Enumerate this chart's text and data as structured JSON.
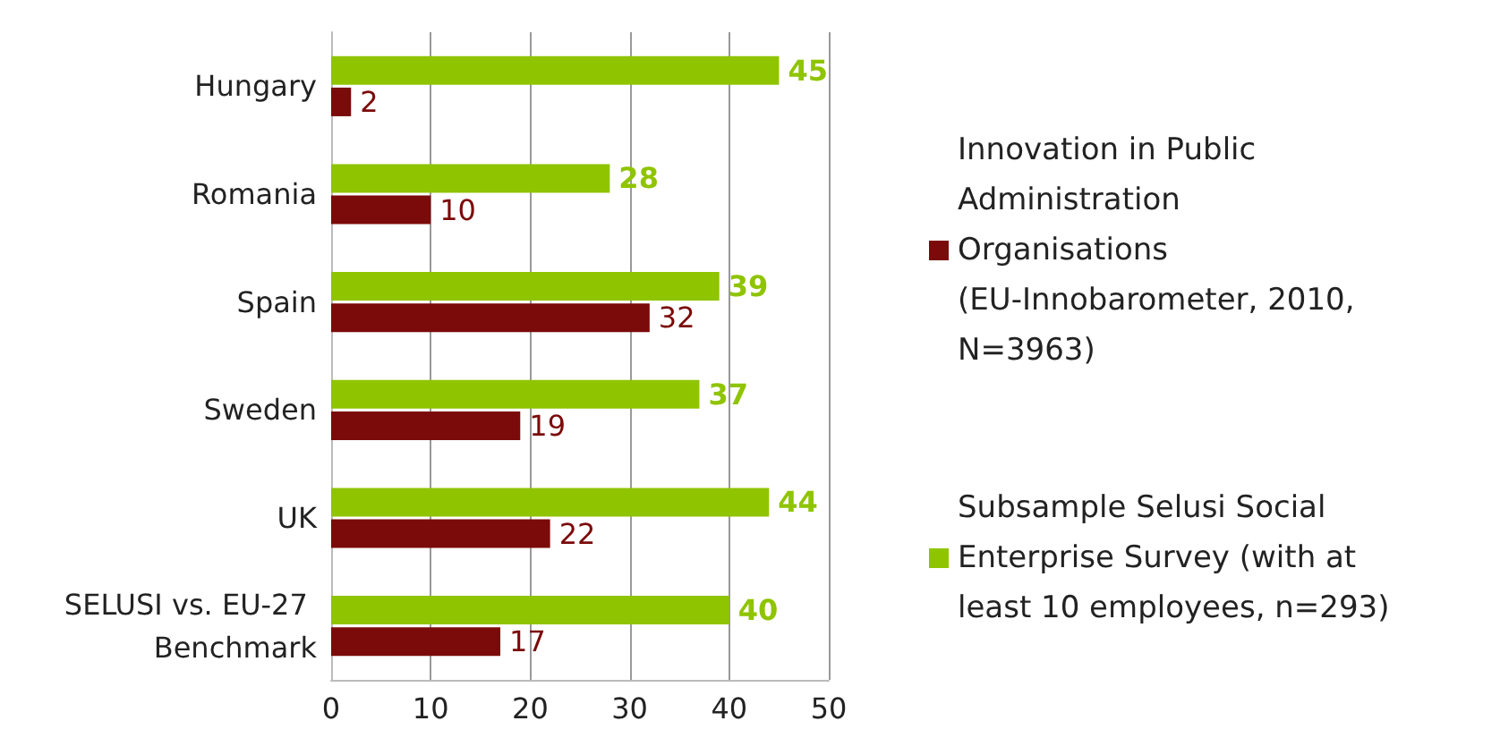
{
  "chart_data": {
    "type": "bar",
    "orientation": "horizontal",
    "categories": [
      "Hungary",
      "Romania",
      "Spain",
      "Sweden",
      "UK",
      "SELUSI vs. EU-27 Benchmark"
    ],
    "series": [
      {
        "name": "Innovation in Public Administration Organisations (EU-Innobarometer, 2010, N=3963)",
        "color": "#7b0a0a",
        "values": [
          2,
          10,
          32,
          19,
          22,
          17
        ]
      },
      {
        "name": "Subsample Selusi Social Enterprise Survey (with at least 10 employees, n=293)",
        "color": "#8fc400",
        "values": [
          45,
          28,
          39,
          37,
          44,
          40
        ]
      }
    ],
    "xlim": [
      0,
      50
    ],
    "xticks": [
      0,
      10,
      20,
      30,
      40,
      50
    ],
    "grid": "x",
    "legend": "right",
    "data_labels": true
  }
}
